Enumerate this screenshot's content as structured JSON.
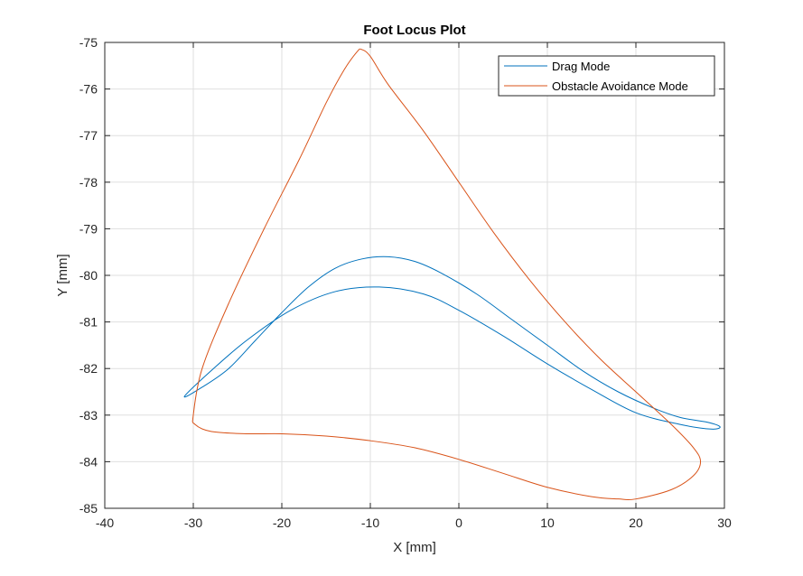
{
  "chart_data": {
    "type": "line",
    "title": "Foot Locus Plot",
    "xlabel": "X [mm]",
    "ylabel": "Y [mm]",
    "xlim": [
      -40,
      30
    ],
    "ylim": [
      -85,
      -75
    ],
    "xticks": [
      "-40",
      "-30",
      "-20",
      "-10",
      "0",
      "10",
      "20",
      "30"
    ],
    "yticks": [
      "-75",
      "-76",
      "-77",
      "-78",
      "-79",
      "-80",
      "-81",
      "-82",
      "-83",
      "-84",
      "-85"
    ],
    "grid": true,
    "legend_position": "top-right",
    "series": [
      {
        "name": "Drag Mode",
        "color": "#0072BD",
        "x": [
          -31.0,
          -29.0,
          -26.0,
          -23.0,
          -20.0,
          -17.0,
          -14.0,
          -11.0,
          -8.0,
          -5.0,
          -2.0,
          2.0,
          6.0,
          10.0,
          14.0,
          18.0,
          22.0,
          25.0,
          28.0,
          29.5,
          28.5,
          25.0,
          20.0,
          15.0,
          10.0,
          5.0,
          0.0,
          -4.0,
          -9.0,
          -14.0,
          -19.0,
          -24.0,
          -28.0,
          -31.0
        ],
        "y": [
          -82.6,
          -82.4,
          -82.0,
          -81.4,
          -80.8,
          -80.25,
          -79.85,
          -79.65,
          -79.6,
          -79.7,
          -79.95,
          -80.4,
          -80.95,
          -81.5,
          -82.05,
          -82.5,
          -82.85,
          -83.05,
          -83.15,
          -83.25,
          -83.3,
          -83.2,
          -82.95,
          -82.45,
          -81.9,
          -81.3,
          -80.75,
          -80.4,
          -80.25,
          -80.35,
          -80.75,
          -81.4,
          -82.05,
          -82.6
        ]
      },
      {
        "name": "Obstacle Avoidance Mode",
        "color": "#D95319",
        "x": [
          -30.0,
          -29.0,
          -26.0,
          -22.0,
          -18.0,
          -15.0,
          -13.0,
          -11.5,
          -11.0,
          -10.0,
          -8.0,
          -4.0,
          0.0,
          4.0,
          8.0,
          12.0,
          16.0,
          20.0,
          24.0,
          26.5,
          27.3,
          26.5,
          24.0,
          20.0,
          18.0,
          15.0,
          10.0,
          5.0,
          0.0,
          -5.0,
          -10.0,
          -15.0,
          -20.0,
          -24.0,
          -28.0,
          -29.8,
          -30.0
        ],
        "y": [
          -83.0,
          -82.0,
          -80.6,
          -79.0,
          -77.5,
          -76.3,
          -75.6,
          -75.2,
          -75.15,
          -75.3,
          -75.9,
          -76.9,
          -78.0,
          -79.1,
          -80.1,
          -81.0,
          -81.8,
          -82.5,
          -83.2,
          -83.7,
          -84.0,
          -84.3,
          -84.6,
          -84.8,
          -84.8,
          -84.75,
          -84.55,
          -84.25,
          -83.95,
          -83.7,
          -83.55,
          -83.45,
          -83.4,
          -83.4,
          -83.35,
          -83.2,
          -83.0
        ]
      }
    ]
  }
}
